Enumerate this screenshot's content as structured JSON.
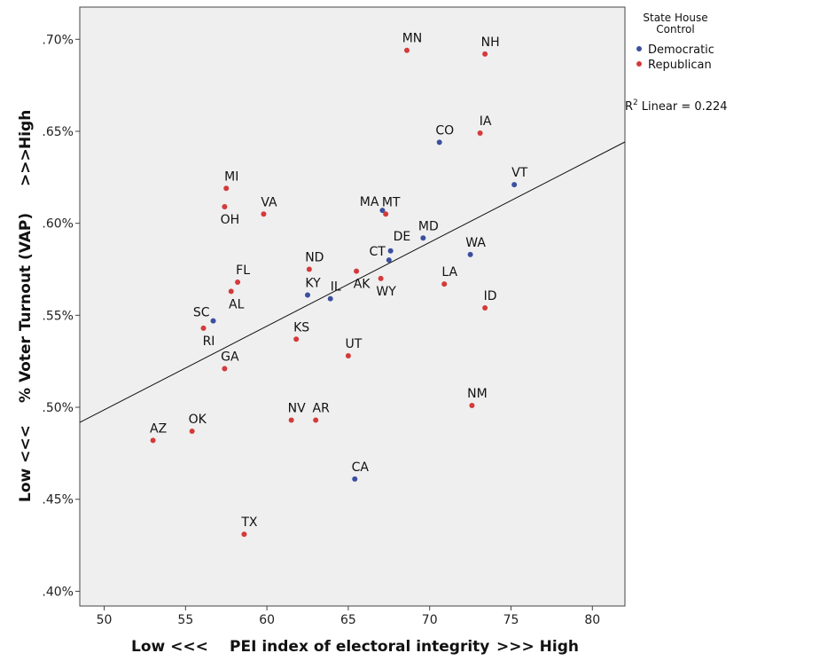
{
  "chart_data": {
    "type": "scatter",
    "xlabel_parts": [
      "Low <<<",
      "PEI index of electoral integrity",
      ">>> High"
    ],
    "ylabel_parts": [
      "Low <<<",
      "% Voter Turnout (VAP)",
      ">>>",
      "High"
    ],
    "xlim": [
      48.5,
      82
    ],
    "ylim": [
      0.392,
      0.7175
    ],
    "x_ticks": [
      50,
      55,
      60,
      65,
      70,
      75,
      80
    ],
    "y_ticks": [
      0.4,
      0.45,
      0.5,
      0.55,
      0.6,
      0.65,
      0.7
    ],
    "y_tick_labels": [
      ".40%",
      ".45%",
      ".50%",
      ".55%",
      ".60%",
      ".65%",
      ".70%"
    ],
    "legend": {
      "title_lines": [
        "State House",
        "Control"
      ],
      "entries": [
        {
          "key": "D",
          "label": "Democratic",
          "color": "#3b4fa0"
        },
        {
          "key": "R",
          "label": "Republican",
          "color": "#d43a3a"
        }
      ]
    },
    "fit_line": {
      "r2_prefix": "R",
      "r2_sup": "2",
      "r2_text": "Linear = 0.224",
      "x0": 48.5,
      "y0": 0.4918,
      "x1": 82,
      "y1": 0.6442
    },
    "points": [
      {
        "state": "MN",
        "x": 68.6,
        "y": 0.694,
        "party": "R",
        "lpos": "above"
      },
      {
        "state": "NH",
        "x": 73.4,
        "y": 0.692,
        "party": "R",
        "lpos": "above"
      },
      {
        "state": "IA",
        "x": 73.1,
        "y": 0.649,
        "party": "R",
        "lpos": "above"
      },
      {
        "state": "CO",
        "x": 70.6,
        "y": 0.644,
        "party": "D",
        "lpos": "above"
      },
      {
        "state": "VT",
        "x": 75.2,
        "y": 0.621,
        "party": "D",
        "lpos": "above"
      },
      {
        "state": "MI",
        "x": 57.5,
        "y": 0.619,
        "party": "R",
        "lpos": "above"
      },
      {
        "state": "OH",
        "x": 57.4,
        "y": 0.609,
        "party": "R",
        "lpos": "below"
      },
      {
        "state": "VA",
        "x": 59.8,
        "y": 0.605,
        "party": "R",
        "lpos": "above"
      },
      {
        "state": "MA",
        "x": 67.1,
        "y": 0.607,
        "party": "D",
        "lpos": "left"
      },
      {
        "state": "MT",
        "x": 67.3,
        "y": 0.605,
        "party": "R",
        "lpos": "above"
      },
      {
        "state": "MD",
        "x": 69.6,
        "y": 0.592,
        "party": "D",
        "lpos": "above"
      },
      {
        "state": "DE",
        "x": 67.6,
        "y": 0.585,
        "party": "D",
        "lpos": "aboveright"
      },
      {
        "state": "CT",
        "x": 67.5,
        "y": 0.58,
        "party": "D",
        "lpos": "left"
      },
      {
        "state": "WA",
        "x": 72.5,
        "y": 0.583,
        "party": "D",
        "lpos": "above"
      },
      {
        "state": "ND",
        "x": 62.6,
        "y": 0.575,
        "party": "R",
        "lpos": "above"
      },
      {
        "state": "FL",
        "x": 58.2,
        "y": 0.568,
        "party": "R",
        "lpos": "above"
      },
      {
        "state": "AL",
        "x": 57.8,
        "y": 0.563,
        "party": "R",
        "lpos": "below"
      },
      {
        "state": "AK",
        "x": 65.5,
        "y": 0.574,
        "party": "R",
        "lpos": "below"
      },
      {
        "state": "WY",
        "x": 67.0,
        "y": 0.57,
        "party": "R",
        "lpos": "below"
      },
      {
        "state": "LA",
        "x": 70.9,
        "y": 0.567,
        "party": "R",
        "lpos": "above"
      },
      {
        "state": "KY",
        "x": 62.5,
        "y": 0.561,
        "party": "D",
        "lpos": "above"
      },
      {
        "state": "IL",
        "x": 63.9,
        "y": 0.559,
        "party": "D",
        "lpos": "above"
      },
      {
        "state": "ID",
        "x": 73.4,
        "y": 0.554,
        "party": "R",
        "lpos": "above"
      },
      {
        "state": "SC",
        "x": 56.7,
        "y": 0.547,
        "party": "D",
        "lpos": "left"
      },
      {
        "state": "RI",
        "x": 56.1,
        "y": 0.543,
        "party": "R",
        "lpos": "below"
      },
      {
        "state": "KS",
        "x": 61.8,
        "y": 0.537,
        "party": "R",
        "lpos": "above"
      },
      {
        "state": "UT",
        "x": 65.0,
        "y": 0.528,
        "party": "R",
        "lpos": "above"
      },
      {
        "state": "GA",
        "x": 57.4,
        "y": 0.521,
        "party": "R",
        "lpos": "above"
      },
      {
        "state": "NM",
        "x": 72.6,
        "y": 0.501,
        "party": "R",
        "lpos": "above"
      },
      {
        "state": "NV",
        "x": 61.5,
        "y": 0.493,
        "party": "R",
        "lpos": "above"
      },
      {
        "state": "AR",
        "x": 63.0,
        "y": 0.493,
        "party": "R",
        "lpos": "above"
      },
      {
        "state": "OK",
        "x": 55.4,
        "y": 0.487,
        "party": "R",
        "lpos": "above"
      },
      {
        "state": "AZ",
        "x": 53.0,
        "y": 0.482,
        "party": "R",
        "lpos": "above"
      },
      {
        "state": "CA",
        "x": 65.4,
        "y": 0.461,
        "party": "D",
        "lpos": "above"
      },
      {
        "state": "TX",
        "x": 58.6,
        "y": 0.431,
        "party": "R",
        "lpos": "above"
      }
    ]
  }
}
